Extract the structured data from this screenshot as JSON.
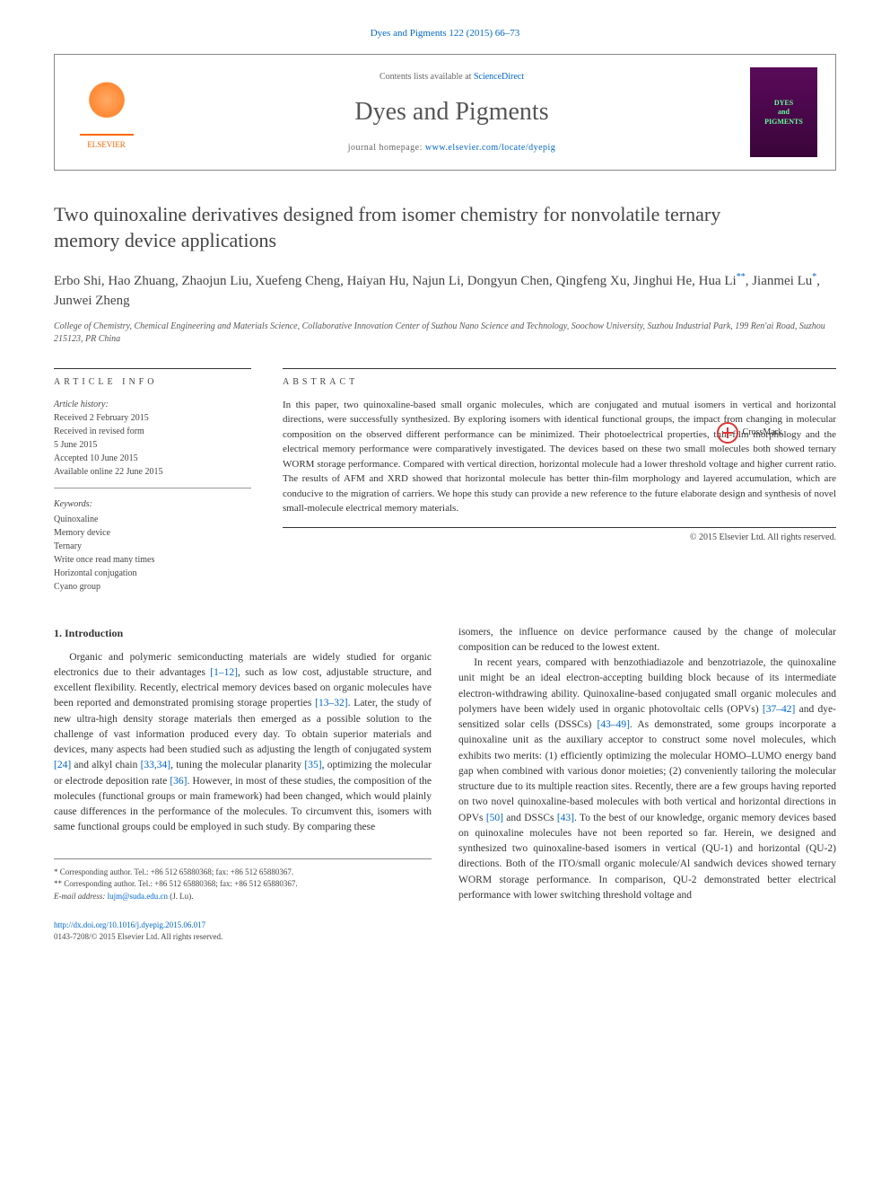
{
  "citation": "Dyes and Pigments 122 (2015) 66–73",
  "header": {
    "contents_prefix": "Contents lists available at ",
    "contents_link": "ScienceDirect",
    "journal_title": "Dyes and Pigments",
    "homepage_prefix": "journal homepage: ",
    "homepage_link": "www.elsevier.com/locate/dyepig",
    "elsevier_label": "ELSEVIER",
    "cover_text": "DYES\nand\nPIGMENTS"
  },
  "article": {
    "title": "Two quinoxaline derivatives designed from isomer chemistry for nonvolatile ternary memory device applications",
    "crossmark_label": "CrossMark",
    "authors_html": "Erbo Shi, Hao Zhuang, Zhaojun Liu, Xuefeng Cheng, Haiyan Hu, Najun Li, Dongyun Chen, Qingfeng Xu, Jinghui He, Hua Li",
    "author_corr2": "**",
    "author_mid": ", Jianmei Lu",
    "author_corr1": "*",
    "author_end": ", Junwei Zheng",
    "affiliation": "College of Chemistry, Chemical Engineering and Materials Science, Collaborative Innovation Center of Suzhou Nano Science and Technology, Soochow University, Suzhou Industrial Park, 199 Ren'ai Road, Suzhou 215123, PR China"
  },
  "info": {
    "article_info_label": "ARTICLE INFO",
    "abstract_label": "ABSTRACT",
    "history_label": "Article history:",
    "history": {
      "received": "Received 2 February 2015",
      "revised": "Received in revised form",
      "revised_date": "5 June 2015",
      "accepted": "Accepted 10 June 2015",
      "online": "Available online 22 June 2015"
    },
    "keywords_label": "Keywords:",
    "keywords": [
      "Quinoxaline",
      "Memory device",
      "Ternary",
      "Write once read many times",
      "Horizontal conjugation",
      "Cyano group"
    ],
    "abstract": "In this paper, two quinoxaline-based small organic molecules, which are conjugated and mutual isomers in vertical and horizontal directions, were successfully synthesized. By exploring isomers with identical functional groups, the impact from changing in molecular composition on the observed different performance can be minimized. Their photoelectrical properties, thin-film morphology and the electrical memory performance were comparatively investigated. The devices based on these two small molecules both showed ternary WORM storage performance. Compared with vertical direction, horizontal molecule had a lower threshold voltage and higher current ratio. The results of AFM and XRD showed that horizontal molecule has better thin-film morphology and layered accumulation, which are conducive to the migration of carriers. We hope this study can provide a new reference to the future elaborate design and synthesis of novel small-molecule electrical memory materials.",
    "copyright": "© 2015 Elsevier Ltd. All rights reserved."
  },
  "body": {
    "intro_heading": "1. Introduction",
    "col1_p1a": "Organic and polymeric semiconducting materials are widely studied for organic electronics due to their advantages ",
    "ref_1_12": "[1–12]",
    "col1_p1b": ", such as low cost, adjustable structure, and excellent flexibility. Recently, electrical memory devices based on organic molecules have been reported and demonstrated promising storage properties ",
    "ref_13_32": "[13–32]",
    "col1_p1c": ". Later, the study of new ultra-high density storage materials then emerged as a possible solution to the challenge of vast information produced every day. To obtain superior materials and devices, many aspects had been studied such as adjusting the length of conjugated system ",
    "ref_24": "[24]",
    "col1_p1d": " and alkyl chain ",
    "ref_33_34": "[33,34]",
    "col1_p1e": ", tuning the molecular planarity ",
    "ref_35": "[35]",
    "col1_p1f": ", optimizing the molecular or electrode deposition rate ",
    "ref_36": "[36]",
    "col1_p1g": ". However, in most of these studies, the composition of the molecules (functional groups or main framework) had been changed, which would plainly cause differences in the performance of the molecules. To circumvent this, isomers with same functional groups could be employed in such study. By comparing these",
    "col2_p1": "isomers, the influence on device performance caused by the change of molecular composition can be reduced to the lowest extent.",
    "col2_p2a": "In recent years, compared with benzothiadiazole and benzotriazole, the quinoxaline unit might be an ideal electron-accepting building block because of its intermediate electron-withdrawing ability. Quinoxaline-based conjugated small organic molecules and polymers have been widely used in organic photovoltaic cells (OPVs) ",
    "ref_37_42": "[37–42]",
    "col2_p2b": " and dye-sensitized solar cells (DSSCs) ",
    "ref_43_49": "[43–49]",
    "col2_p2c": ". As demonstrated, some groups incorporate a quinoxaline unit as the auxiliary acceptor to construct some novel molecules, which exhibits two merits: (1) efficiently optimizing the molecular HOMO–LUMO energy band gap when combined with various donor moieties; (2) conveniently tailoring the molecular structure due to its multiple reaction sites. Recently, there are a few groups having reported on two novel quinoxaline-based molecules with both vertical and horizontal directions in OPVs ",
    "ref_50": "[50]",
    "col2_p2d": " and DSSCs ",
    "ref_43": "[43]",
    "col2_p2e": ". To the best of our knowledge, organic memory devices based on quinoxaline molecules have not been reported so far. Herein, we designed and synthesized two quinoxaline-based isomers in vertical (QU-1) and horizontal (QU-2) directions. Both of the ITO/small organic molecule/Al sandwich devices showed ternary WORM storage performance. In comparison, QU-2 demonstrated better electrical performance with lower switching threshold voltage and"
  },
  "footer": {
    "corr1": "* Corresponding author. Tel.: +86 512 65880368; fax: +86 512 65880367.",
    "corr2": "** Corresponding author. Tel.: +86 512 65880368; fax: +86 512 65880367.",
    "email_label": "E-mail address: ",
    "email": "lujm@suda.edu.cn",
    "email_suffix": " (J. Lu).",
    "doi_link": "http://dx.doi.org/10.1016/j.dyepig.2015.06.017",
    "issn_line": "0143-7208/© 2015 Elsevier Ltd. All rights reserved."
  },
  "colors": {
    "link": "#0066cc",
    "text": "#333333",
    "elsevier": "#ff6600"
  }
}
